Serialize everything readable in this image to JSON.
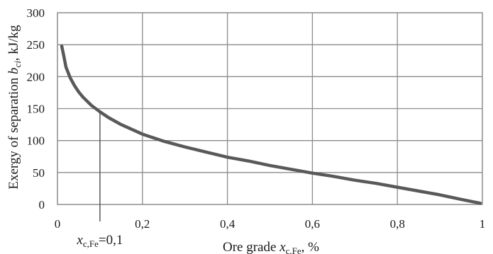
{
  "chart_data": {
    "type": "line",
    "title": "",
    "xlabel": {
      "main": "Ore grade ",
      "var": "x",
      "sub": "c,Fe",
      "unit": ", %"
    },
    "ylabel": {
      "main": "Exergy of separation ",
      "var": "b",
      "sub": "ci",
      "unit": ", kJ/kg"
    },
    "xlim": [
      0,
      1
    ],
    "ylim": [
      0,
      300
    ],
    "xticks": [
      0,
      0.2,
      0.4,
      0.6,
      0.8,
      1
    ],
    "xtick_labels": [
      "0",
      "0,2",
      "0,4",
      "0,6",
      "0,8",
      "1"
    ],
    "yticks": [
      0,
      50,
      100,
      150,
      200,
      250,
      300
    ],
    "ytick_labels": [
      "0",
      "50",
      "100",
      "150",
      "200",
      "250",
      "300"
    ],
    "grid": true,
    "series": [
      {
        "color": "#595959",
        "x": [
          0.01,
          0.015,
          0.02,
          0.03,
          0.04,
          0.05,
          0.06,
          0.08,
          0.1,
          0.12,
          0.15,
          0.2,
          0.25,
          0.3,
          0.35,
          0.4,
          0.45,
          0.5,
          0.55,
          0.6,
          0.65,
          0.7,
          0.75,
          0.8,
          0.85,
          0.9,
          0.95,
          0.98,
          0.995
        ],
        "y": [
          248,
          232,
          215,
          198,
          186,
          176,
          168,
          155,
          145,
          136,
          125,
          110,
          99,
          90,
          82,
          74,
          68,
          61,
          55,
          49,
          44,
          38,
          33,
          27,
          21,
          15,
          8,
          4,
          2
        ]
      }
    ],
    "annotations": [
      {
        "var": "x",
        "sub": "c,Fe",
        "text": "=0,1",
        "x": 0.1,
        "y": 145
      }
    ]
  }
}
